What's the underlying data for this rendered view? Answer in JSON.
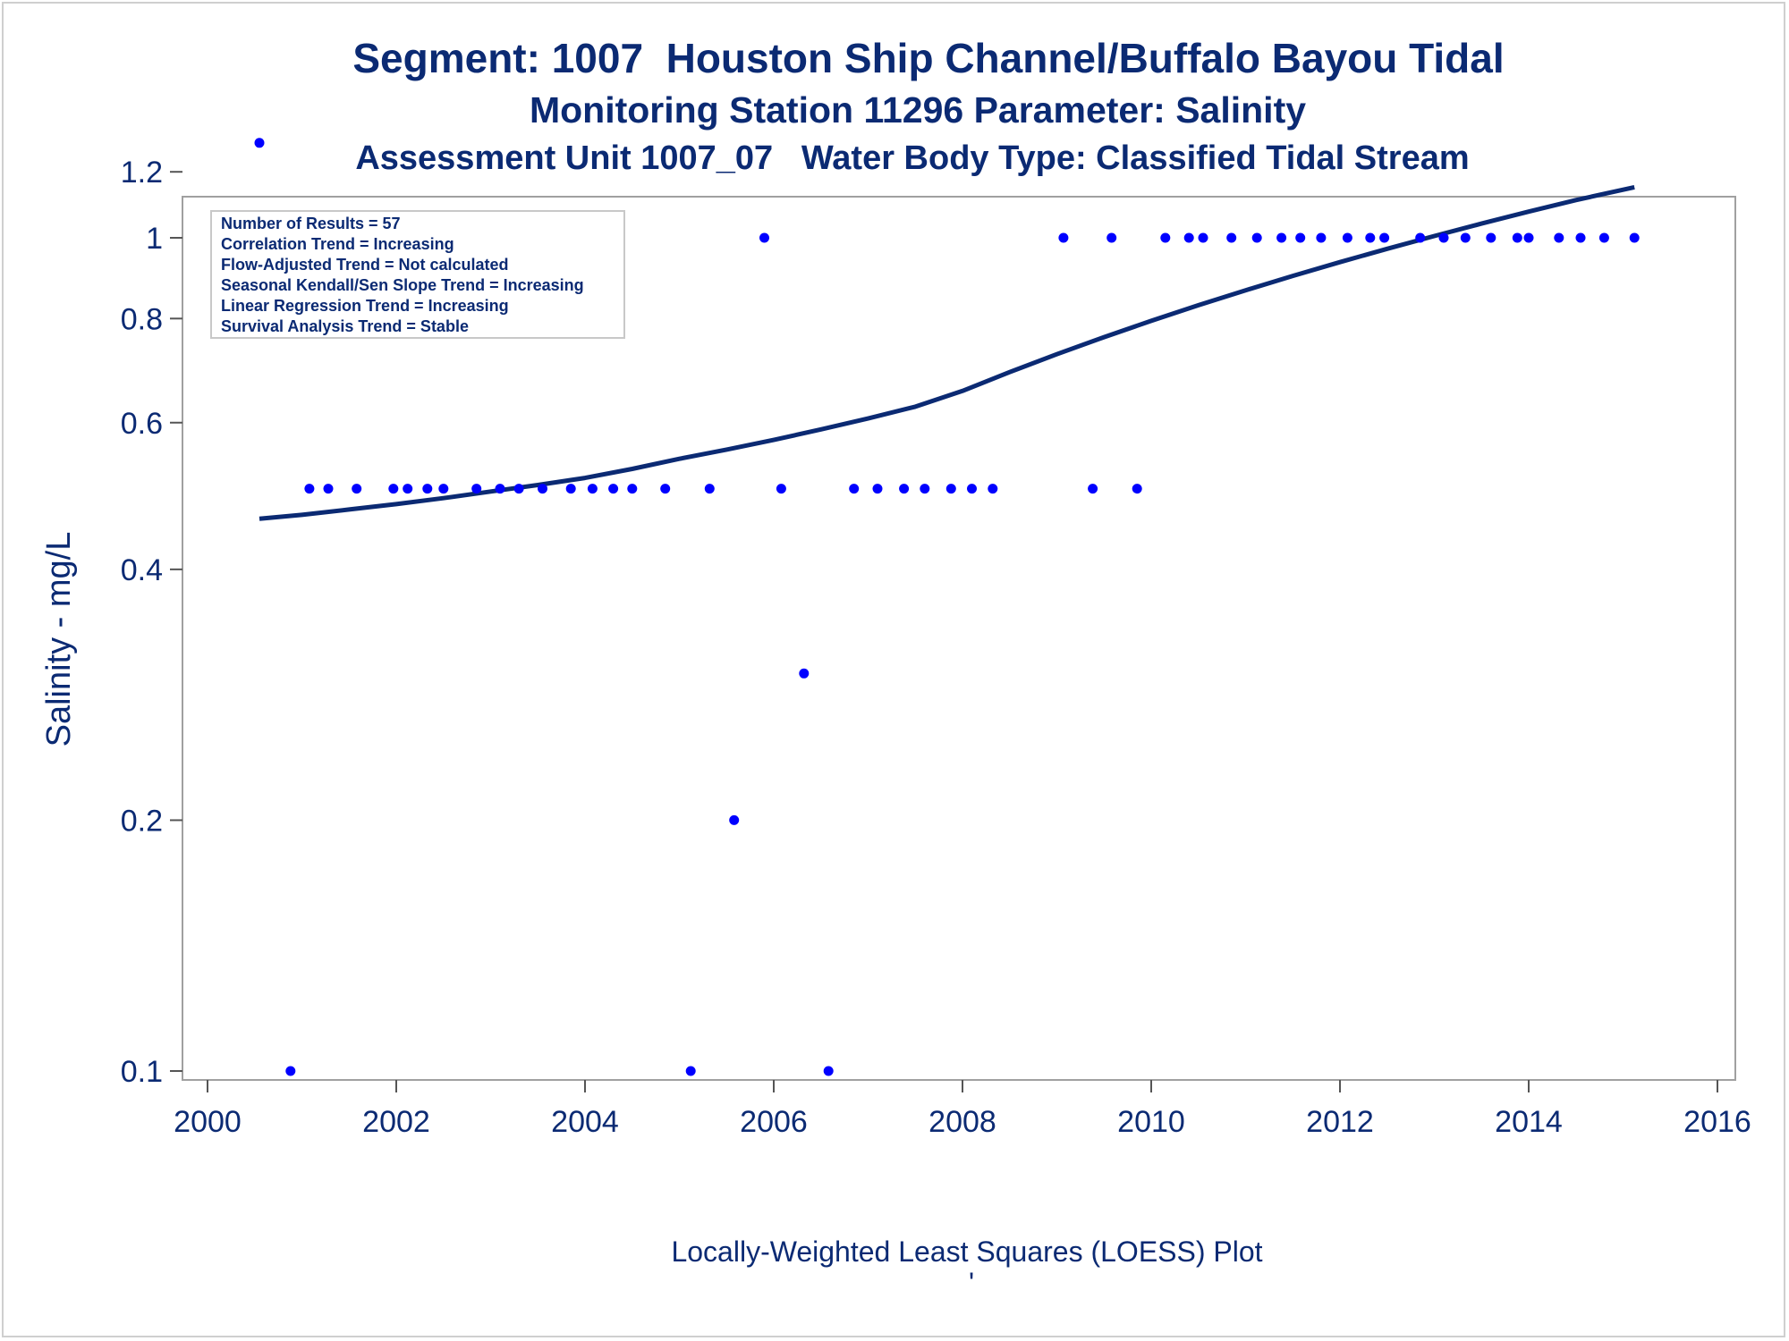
{
  "titles": {
    "line1": "Segment: 1007  Houston Ship Channel/Buffalo Bayou Tidal",
    "line2": "Monitoring Station 11296 Parameter: Salinity",
    "line3": "Assessment Unit 1007_07   Water Body Type: Classified Tidal Stream"
  },
  "annotation": {
    "lines": [
      "Number of Results = 57",
      "Correlation Trend = Increasing",
      "Flow-Adjusted Trend = Not calculated",
      "Seasonal Kendall/Sen Slope Trend = Increasing",
      "Linear Regression Trend = Increasing",
      "Survival Analysis Trend = Stable"
    ]
  },
  "footer": {
    "caption": "Locally-Weighted Least Squares (LOESS) Plot",
    "mark": "'"
  },
  "colors": {
    "text": "#0b2a73",
    "points": "#0000ff",
    "loess": "#0b2a73",
    "frame": "#a0a0a0"
  },
  "chart_data": {
    "type": "scatter",
    "title": "Segment: 1007  Houston Ship Channel/Buffalo Bayou Tidal",
    "xlabel": "",
    "ylabel": "Salinity - mg/L",
    "yscale": "log",
    "xlim": [
      2000,
      2016
    ],
    "ylim": [
      0.095,
      1.33
    ],
    "xticks": [
      "2000",
      "2002",
      "2004",
      "2006",
      "2008",
      "2010",
      "2012",
      "2014",
      "2016"
    ],
    "yticks": [
      "0.1",
      "0.2",
      "0.4",
      "0.6",
      "0.8",
      "1",
      "1.2"
    ],
    "series": [
      {
        "kind": "points",
        "x": [
          2000.55,
          2000.88,
          2001.08,
          2001.28,
          2001.58,
          2001.97,
          2002.12,
          2002.33,
          2002.5,
          2002.85,
          2003.1,
          2003.3,
          2003.55,
          2003.85,
          2004.08,
          2004.3,
          2004.5,
          2004.85,
          2005.12,
          2005.32,
          2005.58,
          2005.9,
          2006.08,
          2006.32,
          2006.58,
          2006.85,
          2007.1,
          2007.38,
          2007.6,
          2007.88,
          2008.1,
          2008.32,
          2009.07,
          2009.38,
          2009.58,
          2009.85,
          2010.15,
          2010.4,
          2010.55,
          2010.85,
          2011.12,
          2011.38,
          2011.58,
          2011.8,
          2012.08,
          2012.32,
          2012.47,
          2012.85,
          2013.1,
          2013.33,
          2013.6,
          2013.88,
          2014.0,
          2014.32,
          2014.55,
          2014.8,
          2015.12
        ],
        "y": [
          1.3,
          0.1,
          0.5,
          0.5,
          0.5,
          0.5,
          0.5,
          0.5,
          0.5,
          0.5,
          0.5,
          0.5,
          0.5,
          0.5,
          0.5,
          0.5,
          0.5,
          0.5,
          0.1,
          0.5,
          0.2,
          1.0,
          0.5,
          0.3,
          0.1,
          0.5,
          0.5,
          0.5,
          0.5,
          0.5,
          0.5,
          0.5,
          1.0,
          0.5,
          1.0,
          0.5,
          1.0,
          1.0,
          1.0,
          1.0,
          1.0,
          1.0,
          1.0,
          1.0,
          1.0,
          1.0,
          1.0,
          1.0,
          1.0,
          1.0,
          1.0,
          1.0,
          1.0,
          1.0,
          1.0,
          1.0,
          1.0
        ]
      },
      {
        "kind": "line",
        "x": [
          2000.55,
          2001.0,
          2001.5,
          2002.0,
          2002.5,
          2003.0,
          2003.5,
          2004.0,
          2004.5,
          2005.0,
          2005.5,
          2006.0,
          2006.5,
          2007.0,
          2007.5,
          2008.0,
          2008.5,
          2009.0,
          2009.5,
          2010.0,
          2010.5,
          2011.0,
          2011.5,
          2012.0,
          2012.5,
          2013.0,
          2013.5,
          2014.0,
          2014.5,
          2015.12
        ],
        "y": [
          0.46,
          0.465,
          0.472,
          0.479,
          0.487,
          0.496,
          0.505,
          0.515,
          0.528,
          0.543,
          0.557,
          0.572,
          0.589,
          0.607,
          0.627,
          0.655,
          0.69,
          0.725,
          0.76,
          0.795,
          0.83,
          0.865,
          0.9,
          0.935,
          0.97,
          1.005,
          1.04,
          1.075,
          1.11,
          1.15
        ]
      }
    ]
  }
}
